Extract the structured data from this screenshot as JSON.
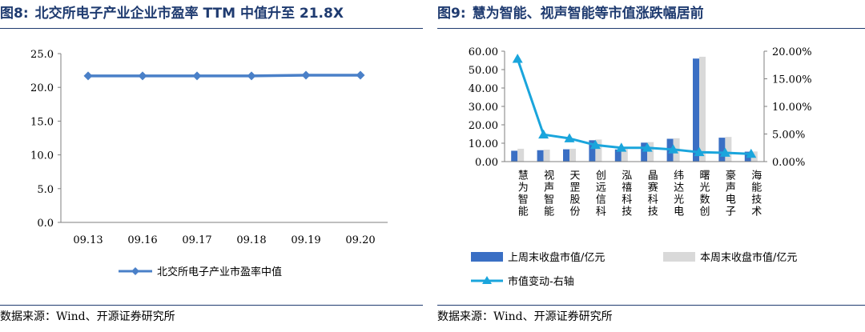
{
  "left": {
    "figure_number": "图8:",
    "title": "北交所电子产业企业市盈率 TTM 中值升至 21.8X",
    "source": "数据来源：Wind、开源证券研究所",
    "colors": {
      "line": "#4a80c8",
      "title": "#1f3b70"
    }
  },
  "right": {
    "figure_number": "图9:",
    "title": "慧为智能、视声智能等市值涨跌幅居前",
    "source": "数据来源：Wind、开源证券研究所",
    "colors": {
      "last_week": "#3a6fc4",
      "this_week": "#d9d9d9",
      "line": "#1aa5dc",
      "title": "#1f3b70"
    }
  },
  "chart_data": [
    {
      "type": "line",
      "title": "北交所电子产业企业市盈率 TTM 中值升至 21.8X",
      "categories": [
        "09.13",
        "09.16",
        "09.17",
        "09.18",
        "09.19",
        "09.20"
      ],
      "series": [
        {
          "name": "北交所电子产业市盈率中值",
          "marker": "diamond",
          "values": [
            21.7,
            21.7,
            21.7,
            21.7,
            21.8,
            21.8
          ]
        }
      ],
      "ylim": [
        0,
        25
      ],
      "yticks": [
        "0.0",
        "5.0",
        "10.0",
        "15.0",
        "20.0",
        "25.0"
      ],
      "grid": false,
      "legend_position": "bottom"
    },
    {
      "type": "bar",
      "title": "慧为智能、视声智能等市值涨跌幅居前",
      "categories": [
        "慧为智能",
        "视声智能",
        "天罡股份",
        "创远信科",
        "泓禧科技",
        "晶赛科技",
        "纬达光电",
        "曙光数创",
        "豪声电子",
        "海能技术"
      ],
      "series": [
        {
          "name": "上周末收盘市值/亿元",
          "kind": "bar",
          "axis": "left",
          "values": [
            5.9,
            6.2,
            6.7,
            11.6,
            6.6,
            10.3,
            12.4,
            56.0,
            13.0,
            5.4
          ]
        },
        {
          "name": "本周末收盘市值/亿元",
          "kind": "bar",
          "axis": "left",
          "values": [
            7.0,
            6.5,
            7.0,
            12.0,
            6.8,
            10.6,
            12.7,
            57.0,
            13.4,
            5.5
          ]
        },
        {
          "name": "市值变动-右轴",
          "kind": "line",
          "marker": "triangle",
          "axis": "right",
          "values": [
            18.6,
            4.9,
            4.2,
            3.0,
            2.5,
            2.5,
            2.2,
            1.7,
            1.6,
            1.4
          ]
        }
      ],
      "ylim": [
        0,
        60
      ],
      "yticks": [
        "0.00",
        "10.00",
        "20.00",
        "30.00",
        "40.00",
        "50.00",
        "60.00"
      ],
      "y2lim": [
        0,
        20
      ],
      "y2ticks": [
        "0.00%",
        "5.00%",
        "10.00%",
        "15.00%",
        "20.00%"
      ],
      "grid": false,
      "legend_position": "bottom"
    }
  ]
}
